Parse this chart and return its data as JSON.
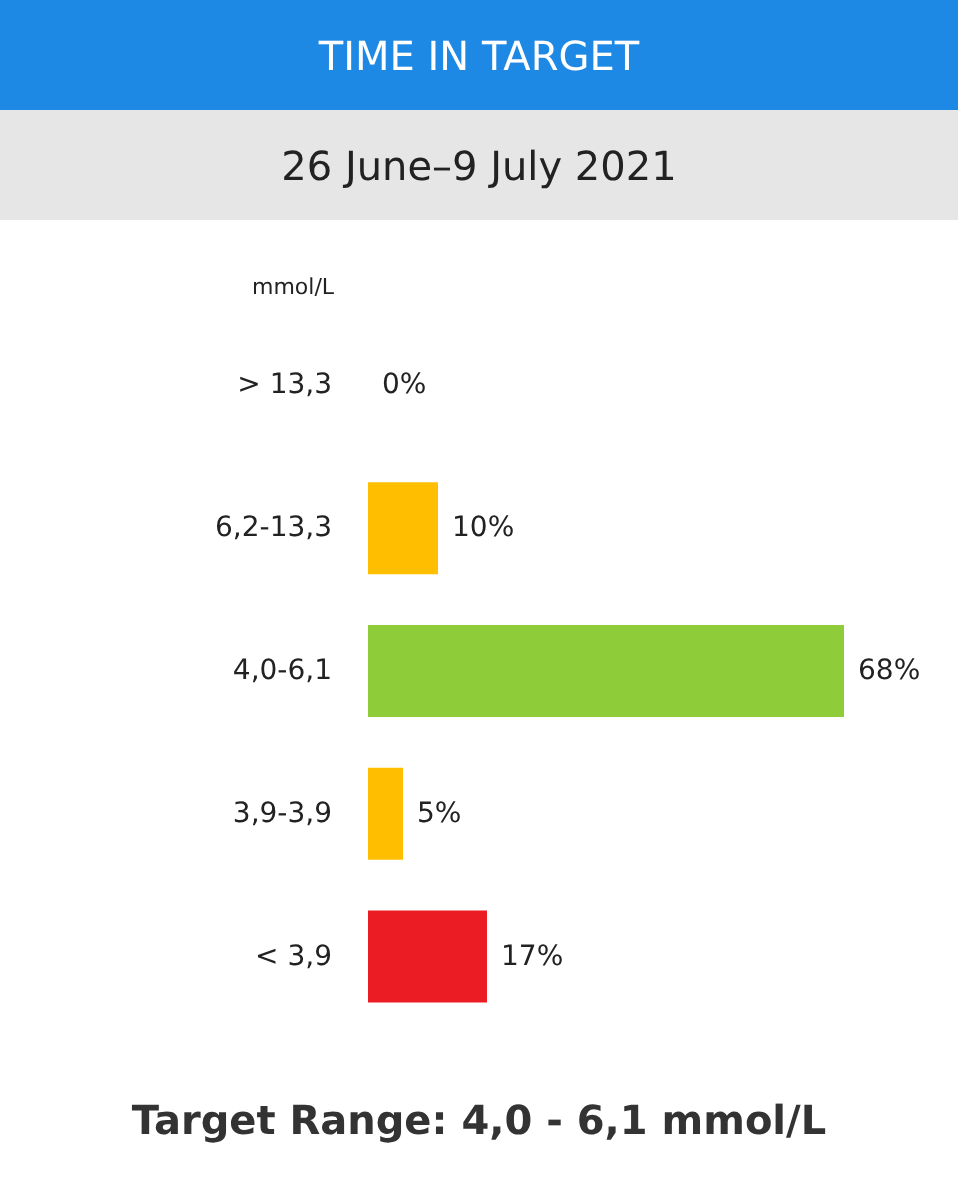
{
  "chart_data": {
    "type": "bar",
    "orientation": "horizontal",
    "title": "TIME IN TARGET",
    "subtitle": "26 June–9 July 2021",
    "ylabel": "mmol/L",
    "categories": [
      "> 13,3",
      "6,2-13,3",
      "4,0-6,1",
      "3,9-3,9",
      "< 3,9"
    ],
    "values": [
      0,
      10,
      68,
      5,
      17
    ],
    "colors": [
      "#ffbf00",
      "#ffbf00",
      "#8fcc3a",
      "#ffbf00",
      "#ec1c24"
    ],
    "value_labels": [
      "0%",
      "10%",
      "68%",
      "5%",
      "17%"
    ],
    "annotations": [
      "Target Range: 4,0 - 6,1 mmol/L"
    ]
  }
}
